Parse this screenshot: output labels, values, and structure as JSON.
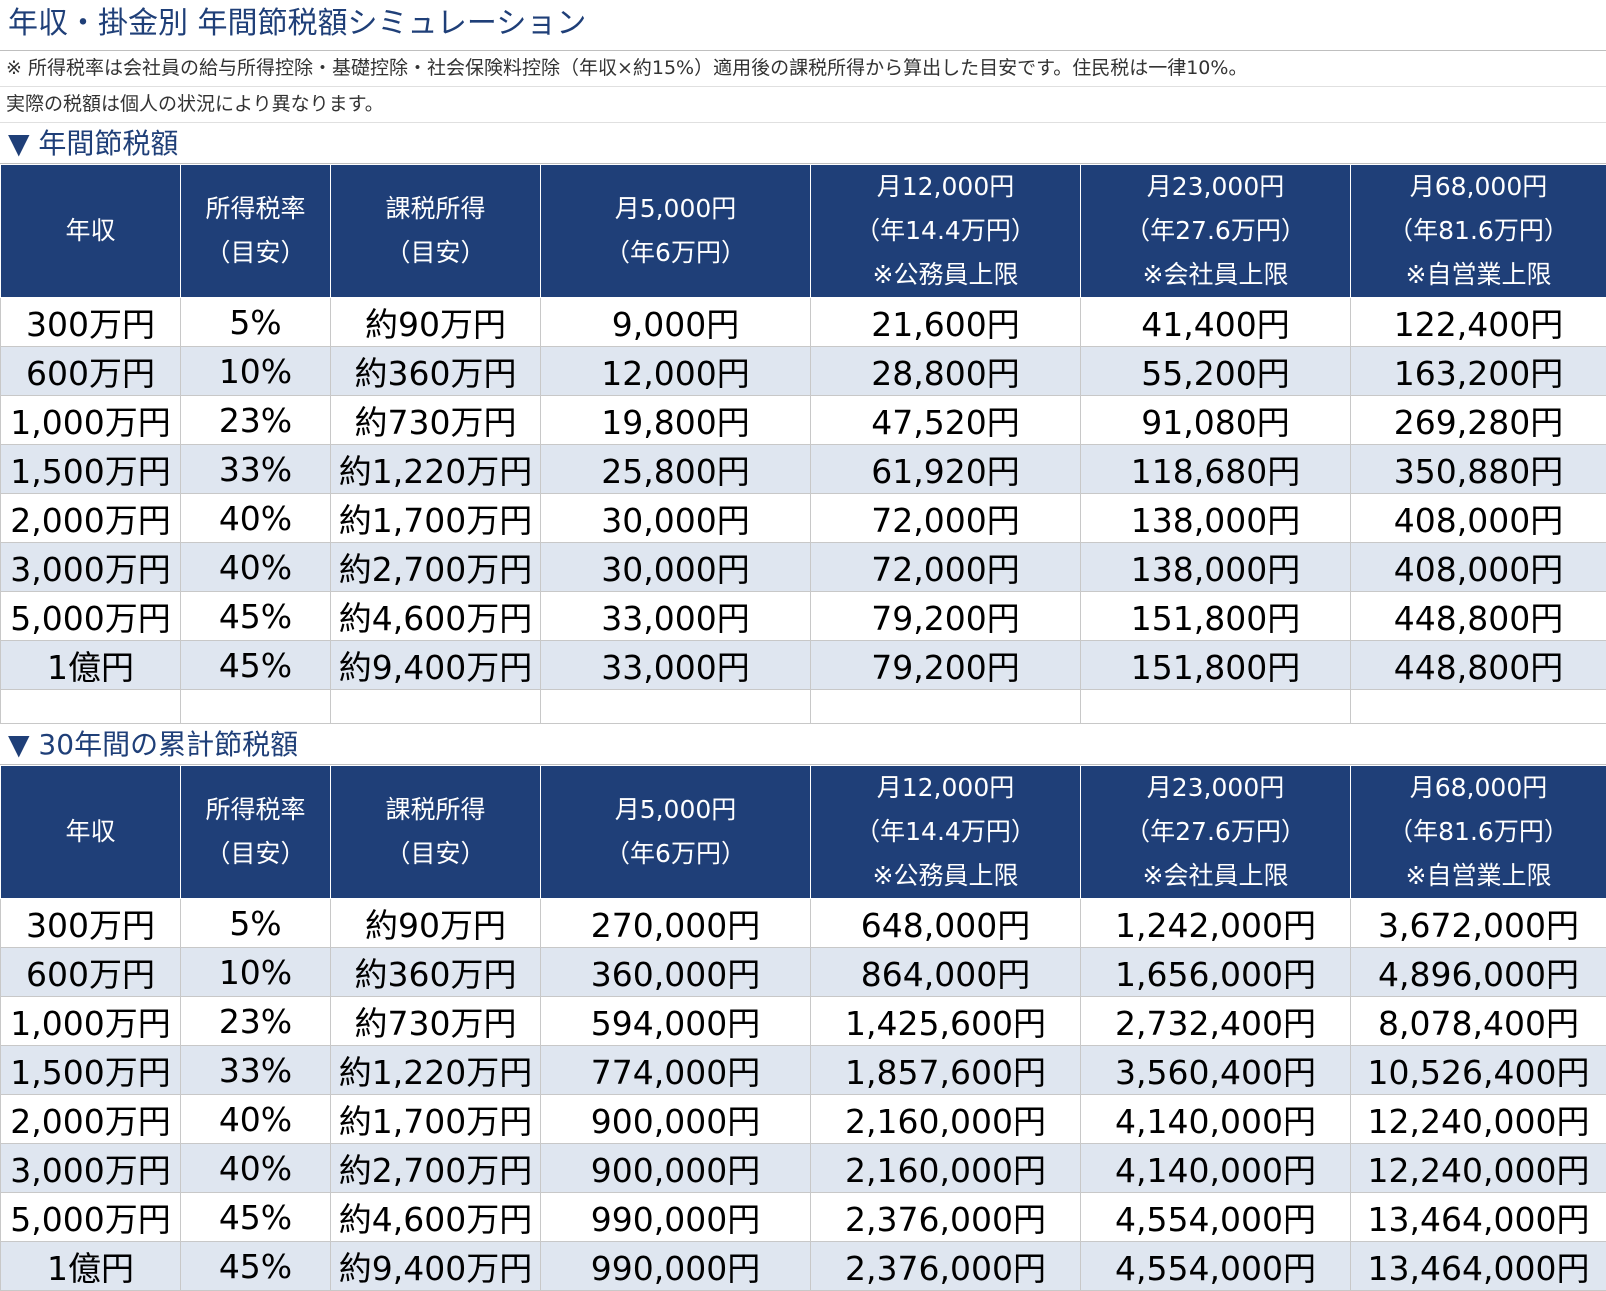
{
  "title": "年収・掛金別 年間節税額シミュレーション",
  "notes": [
    "※ 所得税率は会社員の給与所得控除・基礎控除・社会保険料控除（年収×約15%）適用後の課税所得から算出した目安です。住民税は一律10%。",
    "実際の税額は個人の状況により異なります。"
  ],
  "header": [
    [
      "年収"
    ],
    [
      "所得税率",
      "（目安）"
    ],
    [
      "課税所得",
      "（目安）"
    ],
    [
      "月5,000円",
      "（年6万円）"
    ],
    [
      "月12,000円",
      "（年14.4万円）",
      "※公務員上限"
    ],
    [
      "月23,000円",
      "（年27.6万円）",
      "※会社員上限"
    ],
    [
      "月68,000円",
      "（年81.6万円）",
      "※自営業上限"
    ]
  ],
  "section1": {
    "title": "▼ 年間節税額",
    "rows": [
      [
        "300万円",
        "5%",
        "約90万円",
        "9,000円",
        "21,600円",
        "41,400円",
        "122,400円"
      ],
      [
        "600万円",
        "10%",
        "約360万円",
        "12,000円",
        "28,800円",
        "55,200円",
        "163,200円"
      ],
      [
        "1,000万円",
        "23%",
        "約730万円",
        "19,800円",
        "47,520円",
        "91,080円",
        "269,280円"
      ],
      [
        "1,500万円",
        "33%",
        "約1,220万円",
        "25,800円",
        "61,920円",
        "118,680円",
        "350,880円"
      ],
      [
        "2,000万円",
        "40%",
        "約1,700万円",
        "30,000円",
        "72,000円",
        "138,000円",
        "408,000円"
      ],
      [
        "3,000万円",
        "40%",
        "約2,700万円",
        "30,000円",
        "72,000円",
        "138,000円",
        "408,000円"
      ],
      [
        "5,000万円",
        "45%",
        "約4,600万円",
        "33,000円",
        "79,200円",
        "151,800円",
        "448,800円"
      ],
      [
        "1億円",
        "45%",
        "約9,400万円",
        "33,000円",
        "79,200円",
        "151,800円",
        "448,800円"
      ]
    ]
  },
  "section2": {
    "title": "▼ 30年間の累計節税額",
    "rows": [
      [
        "300万円",
        "5%",
        "約90万円",
        "270,000円",
        "648,000円",
        "1,242,000円",
        "3,672,000円"
      ],
      [
        "600万円",
        "10%",
        "約360万円",
        "360,000円",
        "864,000円",
        "1,656,000円",
        "4,896,000円"
      ],
      [
        "1,000万円",
        "23%",
        "約730万円",
        "594,000円",
        "1,425,600円",
        "2,732,400円",
        "8,078,400円"
      ],
      [
        "1,500万円",
        "33%",
        "約1,220万円",
        "774,000円",
        "1,857,600円",
        "3,560,400円",
        "10,526,400円"
      ],
      [
        "2,000万円",
        "40%",
        "約1,700万円",
        "900,000円",
        "2,160,000円",
        "4,140,000円",
        "12,240,000円"
      ],
      [
        "3,000万円",
        "40%",
        "約2,700万円",
        "900,000円",
        "2,160,000円",
        "4,140,000円",
        "12,240,000円"
      ],
      [
        "5,000万円",
        "45%",
        "約4,600万円",
        "990,000円",
        "2,376,000円",
        "4,554,000円",
        "13,464,000円"
      ],
      [
        "1億円",
        "45%",
        "約9,400万円",
        "990,000円",
        "2,376,000円",
        "4,554,000円",
        "13,464,000円"
      ]
    ]
  }
}
